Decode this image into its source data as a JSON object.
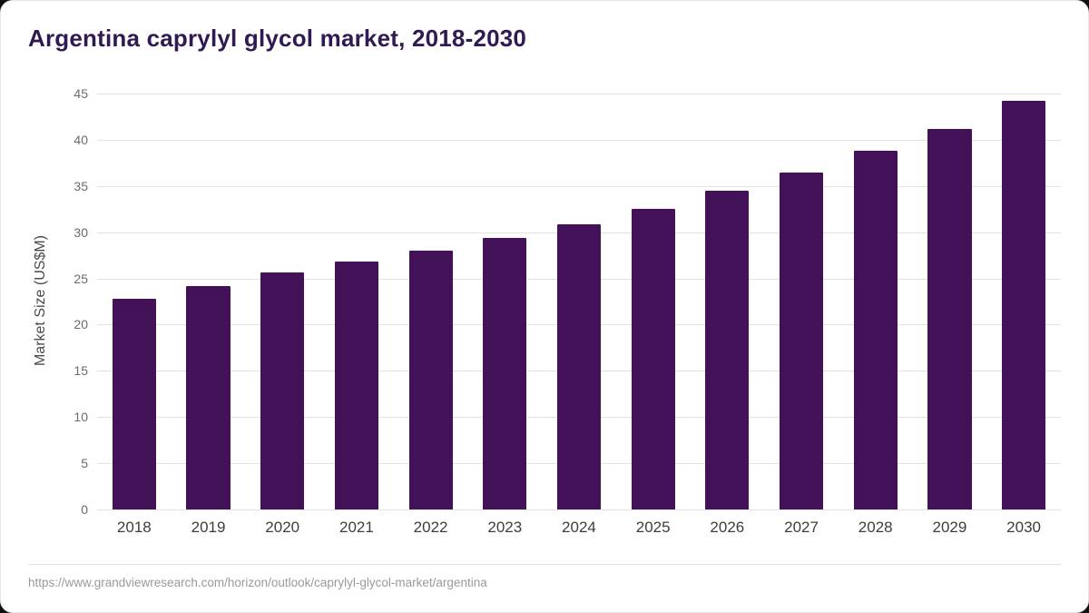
{
  "page": {
    "source_url": "https://www.grandviewresearch.com/horizon/outlook/caprylyl-glycol-market/argentina"
  },
  "chart_data": {
    "type": "bar",
    "title": "Argentina caprylyl glycol market, 2018-2030",
    "categories": [
      "2018",
      "2019",
      "2020",
      "2021",
      "2022",
      "2023",
      "2024",
      "2025",
      "2026",
      "2027",
      "2028",
      "2029",
      "2030"
    ],
    "values": [
      22.8,
      24.2,
      25.6,
      26.8,
      28.0,
      29.4,
      30.9,
      32.5,
      34.5,
      36.5,
      38.8,
      41.2,
      44.2
    ],
    "xlabel": "",
    "ylabel": "Market Size (US$M)",
    "ylim": [
      0,
      45
    ],
    "yticks": [
      0,
      5,
      10,
      15,
      20,
      25,
      30,
      35,
      40,
      45
    ],
    "grid": "horizontal",
    "legend": "none",
    "bar_color": "#431158",
    "title_color": "#301a52"
  }
}
